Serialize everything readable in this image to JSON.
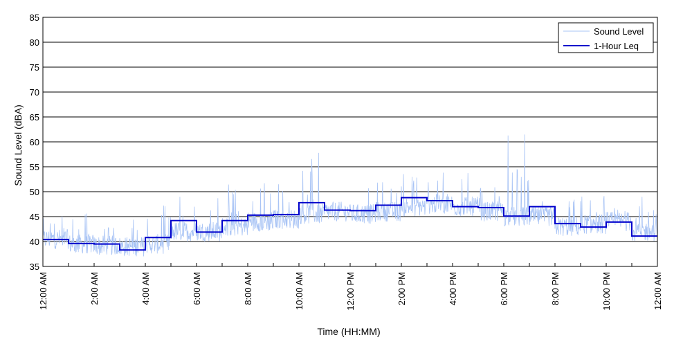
{
  "chart_data": {
    "type": "line",
    "xlabel": "Time (HH:MM)",
    "ylabel": "Sound Level (dBA)",
    "xlim": [
      0,
      24
    ],
    "ylim": [
      35,
      85
    ],
    "y_ticks": [
      35,
      40,
      45,
      50,
      55,
      60,
      65,
      70,
      75,
      80,
      85
    ],
    "x_ticks": [
      0,
      2,
      4,
      6,
      8,
      10,
      12,
      14,
      16,
      18,
      20,
      22,
      24
    ],
    "x_tick_labels": [
      "12:00 AM",
      "2:00 AM",
      "4:00 AM",
      "6:00 AM",
      "8:00 AM",
      "10:00 AM",
      "12:00 PM",
      "2:00 PM",
      "4:00 PM",
      "6:00 PM",
      "8:00 PM",
      "10:00 PM",
      "12:00 AM"
    ],
    "grid": "horizontal",
    "legend_position": "top-right",
    "series": [
      {
        "name": "Sound Level",
        "style": "thin-line",
        "color": "#a9c4f5",
        "hourly_baseline": [
          38.5,
          37.5,
          37.2,
          37.0,
          37.5,
          40.0,
          40.0,
          41.0,
          42.0,
          42.5,
          43.5,
          44.0,
          43.5,
          44.0,
          45.0,
          45.5,
          45.0,
          44.0,
          43.0,
          43.0,
          41.0,
          41.5,
          42.0,
          40.0
        ],
        "hourly_peak": [
          46.0,
          47.5,
          44.0,
          46.0,
          49.0,
          52.0,
          52.0,
          53.0,
          55.0,
          54.0,
          58.5,
          53.0,
          54.0,
          55.0,
          55.0,
          54.0,
          55.0,
          53.0,
          61.5,
          50.0,
          50.0,
          51.0,
          47.0,
          50.0
        ]
      },
      {
        "name": "1-Hour Leq",
        "style": "step",
        "color": "#0000cc",
        "values": [
          40.4,
          39.6,
          39.5,
          38.3,
          40.8,
          44.2,
          41.9,
          44.2,
          45.3,
          45.4,
          47.8,
          46.3,
          46.2,
          47.3,
          48.8,
          48.2,
          47.0,
          46.8,
          45.1,
          47.0,
          43.6,
          42.9,
          43.9,
          41.1
        ]
      }
    ]
  }
}
